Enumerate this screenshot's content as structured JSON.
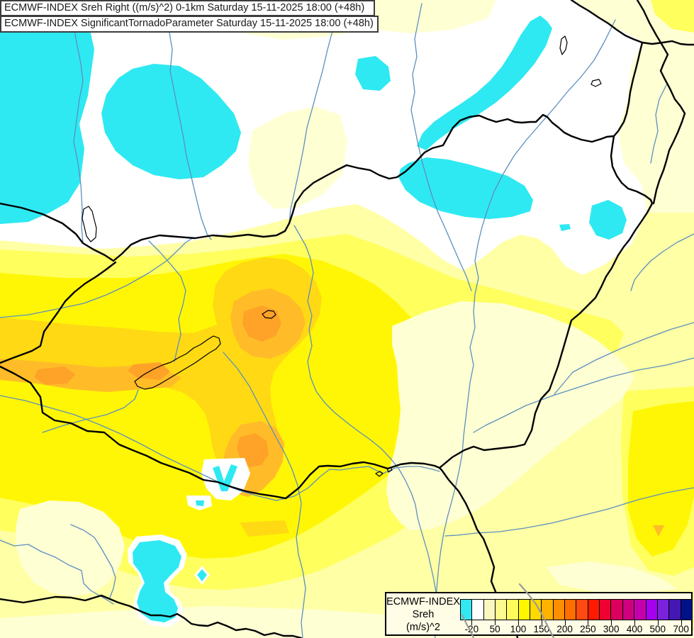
{
  "titles": {
    "line1": "ECMWF-INDEX Sreh Right ((m/s)^2) 0-1km Saturday 15-11-2025 18:00 (+48h)",
    "line2": "ECMWF-INDEX SignificantTornadoParameter Saturday 15-11-2025 18:00 (+48h)"
  },
  "legend": {
    "title_lines": [
      "ECMWF-INDEX",
      "Sreh",
      "(m/s)^2"
    ],
    "colors": [
      "#33E8F0",
      "#FFFFFF",
      "#FBF7C0",
      "#FCF98E",
      "#FEFC5C",
      "#FFF700",
      "#FFD900",
      "#FFB300",
      "#FF8F00",
      "#FF6E00",
      "#FF4A12",
      "#FF1A00",
      "#F00032",
      "#DC005E",
      "#CE0080",
      "#C400AC",
      "#A500EF",
      "#7A22DC",
      "#4517B4",
      "#001287"
    ],
    "ticks": [
      {
        "label": "-20",
        "b": 1
      },
      {
        "label": "50",
        "b": 3
      },
      {
        "label": "100",
        "b": 5
      },
      {
        "label": "150",
        "b": 7
      },
      {
        "label": "200",
        "b": 9
      },
      {
        "label": "250",
        "b": 11
      },
      {
        "label": "300",
        "b": 13
      },
      {
        "label": "400",
        "b": 15
      },
      {
        "label": "500",
        "b": 17
      },
      {
        "label": "700",
        "b": 19
      }
    ]
  },
  "palette": {
    "cyan": "#2EE9F2",
    "white_fill": "#FFFFFF",
    "pale1": "#FFFFD4",
    "pale2": "#FFFFA6",
    "light": "#FFFF5E",
    "vivid": "#FFF605",
    "gold": "#FFD914",
    "orange": "#FFBC28",
    "deep_orange": "#FFA228",
    "river": "#5C8FBF",
    "border": "#000000",
    "border_gray": "#9A9A9A",
    "legend_bg": "#FFFDE6",
    "box_bg": "#FFFFFF",
    "box_border": "#3C3C3C",
    "text": "#1A1A1A"
  }
}
